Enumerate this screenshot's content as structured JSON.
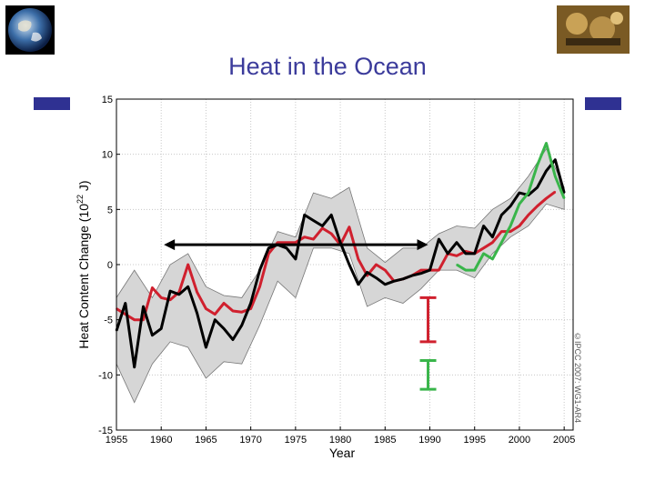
{
  "slide": {
    "title": "Heat in the Ocean"
  },
  "copyright": "©IPCC 2007: WG1-AR4",
  "colors": {
    "title": "#3b3b9b",
    "accent_bar": "#2f3192",
    "red": "#d0202e",
    "black": "#000000",
    "green": "#39b54a",
    "band": "#d6d6d6"
  },
  "chart_data": {
    "type": "line",
    "title": "",
    "xlabel": "Year",
    "ylabel_main": "Heat Content Change (10",
    "ylabel_sup": "22",
    "ylabel_tail": " J)",
    "xlim": [
      1955,
      2006
    ],
    "ylim": [
      -15,
      15
    ],
    "xticks": [
      1955,
      1960,
      1965,
      1970,
      1975,
      1980,
      1985,
      1990,
      1995,
      2000,
      2005
    ],
    "yticks": [
      -15,
      -10,
      -5,
      0,
      5,
      10,
      15
    ],
    "grid": true,
    "series": [
      {
        "name": "red",
        "color": "#d0202e",
        "x": [
          1955,
          1956,
          1957,
          1958,
          1959,
          1960,
          1961,
          1962,
          1963,
          1964,
          1965,
          1966,
          1967,
          1968,
          1969,
          1970,
          1971,
          1972,
          1973,
          1974,
          1975,
          1976,
          1977,
          1978,
          1979,
          1980,
          1981,
          1982,
          1983,
          1984,
          1985,
          1986,
          1987,
          1988,
          1989,
          1990,
          1991,
          1992,
          1993,
          1994,
          1995,
          1996,
          1997,
          1998,
          1999,
          2000,
          2001,
          2002,
          2003,
          2004
        ],
        "values": [
          -4,
          -4.5,
          -5,
          -5,
          -2.1,
          -3,
          -3.2,
          -2.5,
          0,
          -2.5,
          -4,
          -4.5,
          -3.5,
          -4.2,
          -4.3,
          -4,
          -2,
          1,
          2,
          2,
          2,
          2.5,
          2.3,
          3.3,
          2.8,
          1.8,
          3.4,
          0.5,
          -1,
          0,
          -0.5,
          -1.5,
          -1.3,
          -1,
          -0.5,
          -0.5,
          -0.5,
          1,
          0.8,
          1.2,
          1,
          1.5,
          2,
          3,
          3,
          3.5,
          4.5,
          5.3,
          6,
          6.6
        ]
      },
      {
        "name": "black",
        "color": "#000000",
        "x": [
          1955,
          1956,
          1957,
          1958,
          1959,
          1960,
          1961,
          1962,
          1963,
          1964,
          1965,
          1966,
          1967,
          1968,
          1969,
          1970,
          1971,
          1972,
          1973,
          1974,
          1975,
          1976,
          1977,
          1978,
          1979,
          1980,
          1981,
          1982,
          1983,
          1984,
          1985,
          1986,
          1987,
          1988,
          1989,
          1990,
          1991,
          1992,
          1993,
          1994,
          1995,
          1996,
          1997,
          1998,
          1999,
          2000,
          2001,
          2002,
          2003,
          2004,
          2005
        ],
        "values": [
          -6,
          -3.5,
          -9.3,
          -3.8,
          -6.4,
          -5.8,
          -2.4,
          -2.7,
          -2,
          -4.4,
          -7.5,
          -5,
          -5.8,
          -6.8,
          -5.5,
          -3.5,
          -0.5,
          1.5,
          1.8,
          1.5,
          0.5,
          4.5,
          4,
          3.5,
          4.5,
          2,
          0,
          -1.8,
          -0.7,
          -1.2,
          -1.8,
          -1.5,
          -1.3,
          -1,
          -0.8,
          -0.5,
          2.3,
          1,
          2,
          1,
          1,
          3.5,
          2.5,
          4.5,
          5.3,
          6.5,
          6.3,
          7,
          8.5,
          9.5,
          6.5
        ]
      },
      {
        "name": "green",
        "color": "#39b54a",
        "x": [
          1993,
          1994,
          1995,
          1996,
          1997,
          1998,
          1999,
          2000,
          2001,
          2002,
          2003,
          2004,
          2005
        ],
        "values": [
          0,
          -0.5,
          -0.5,
          1,
          0.5,
          2,
          3.5,
          5.5,
          6.5,
          9,
          11,
          8,
          6
        ]
      }
    ],
    "uncertainty_band": {
      "x": [
        1955,
        1957,
        1959,
        1961,
        1963,
        1965,
        1967,
        1969,
        1971,
        1973,
        1975,
        1977,
        1979,
        1981,
        1983,
        1985,
        1987,
        1989,
        1991,
        1993,
        1995,
        1997,
        1999,
        2001,
        2003,
        2005
      ],
      "upper": [
        -3,
        -0.5,
        -3,
        0,
        1,
        -2,
        -2.8,
        -3,
        -0.5,
        3,
        2.5,
        6.5,
        6,
        7,
        1.5,
        0.2,
        1.5,
        1.5,
        2.8,
        3.5,
        3.3,
        5,
        6,
        8,
        10.5,
        7
      ],
      "lower": [
        -9,
        -12.5,
        -9,
        -7,
        -7.5,
        -10.3,
        -8.8,
        -9,
        -5.5,
        -1.5,
        -3,
        1.5,
        1.5,
        1,
        -3.8,
        -3,
        -3.5,
        -2.2,
        -0.5,
        -0.5,
        -1.2,
        1,
        2.5,
        3.5,
        5.5,
        5
      ]
    },
    "annotations": {
      "double_arrow": {
        "x_start": 1960.3,
        "x_end": 1989.8,
        "y": 1.8
      },
      "error_bars": [
        {
          "color": "#d0202e",
          "x": 1989.8,
          "y_top": -3,
          "y_bottom": -7
        },
        {
          "color": "#39b54a",
          "x": 1989.8,
          "y_top": -8.7,
          "y_bottom": -11.3
        }
      ]
    }
  }
}
